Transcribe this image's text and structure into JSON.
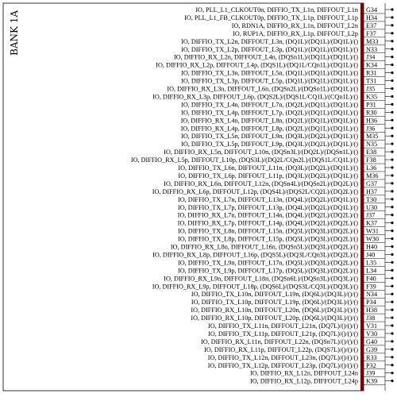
{
  "bank": {
    "title": "BANK 1A",
    "colors": {
      "border": "#000000",
      "power_rail": "#7a0000",
      "pin_dot": "#000000"
    }
  },
  "pins": [
    {
      "signal": "IO, PLL_L1_CLKOUT0n, DIFFIO_TX_L1n, DIFFOUT_L1n",
      "pin": "G34"
    },
    {
      "signal": "IO, PLL_L1_FB_CLKOUT0p, DIFFIO_TX_L1p, DIFFOUT_L1p",
      "pin": "H34"
    },
    {
      "signal": "IO, RDN1A, DIFFIO_RX_L1n, DIFFOUT_L2n",
      "pin": "E37"
    },
    {
      "signal": "IO, RUP1A, DIFFIO_RX_L1p, DIFFOUT_L2p",
      "pin": "F37"
    },
    {
      "signal": "IO, DIFFIO_TX_L2n, DIFFOUT_L3n, (DQ1L)/(DQ1L)/(DQ1L)/()",
      "pin": "M33"
    },
    {
      "signal": "IO, DIFFIO_TX_L2p, DIFFOUT_L3p, (DQ1L)/(DQ1L)/(DQ1L)/()",
      "pin": "N33"
    },
    {
      "signal": "IO, DIFFIO_RX_L2n, DIFFOUT_L4n, (DQSn1L)/(DQ1L)/(DQ1L)/()",
      "pin": "J34"
    },
    {
      "signal": "IO, DIFFIO_RX_L2p, DIFFOUT_L4p, (DQS1L)/(DQ1L/CQn1L)/(DQ1L)/()",
      "pin": "K34"
    },
    {
      "signal": "IO, DIFFIO_TX_L3n, DIFFOUT_L5n, (DQ1L)/(DQ1L)/(DQ1L)/()",
      "pin": "R31"
    },
    {
      "signal": "IO, DIFFIO_TX_L3p, DIFFOUT_L5p, (DQ1L)/(DQ1L)/(DQ1L)/()",
      "pin": "T31"
    },
    {
      "signal": "IO, DIFFIO_RX_L3n, DIFFOUT_L6n, (DQSn2L)/(DQSn1L)/(DQ1L)/()",
      "pin": "J35"
    },
    {
      "signal": "IO, DIFFIO_RX_L3p, DIFFOUT_L6p, (DQS2L)/(DQS1L/CQ1L)/(CQn1L)/()",
      "pin": "K35"
    },
    {
      "signal": "IO, DIFFIO_TX_L4n, DIFFOUT_L7n, (DQ2L)/(DQ1L)/(DQ1L)/()",
      "pin": "P31"
    },
    {
      "signal": "IO, DIFFIO_TX_L4p, DIFFOUT_L7p, (DQ2L)/(DQ1L)/(DQ1L)/()",
      "pin": "R30"
    },
    {
      "signal": "IO, DIFFIO_RX_L4n, DIFFOUT_L8n, (DQ2L)/(DQ1L)/(DQ1L)/()",
      "pin": "H36"
    },
    {
      "signal": "IO, DIFFIO_RX_L4p, DIFFOUT_L8p, (DQ2L)/(DQ1L)/(DQ1L)/()",
      "pin": "J36"
    },
    {
      "signal": "IO, DIFFIO_TX_L5n, DIFFOUT_L9n, (DQ3L)/(DQ2L)/(DQ1L)/()",
      "pin": "M35"
    },
    {
      "signal": "IO, DIFFIO_TX_L5p, DIFFOUT_L9p, (DQ3L)/(DQ2L)/(DQ1L)/()",
      "pin": "N35"
    },
    {
      "signal": "IO, DIFFIO_RX_L5n, DIFFOUT_L10n, (DQSn3L)/(DQ2L)/(DQSn1L)/()",
      "pin": "E38"
    },
    {
      "signal": "IO, DIFFIO_RX_L5p, DIFFOUT_L10p, (DQS3L)/(DQ2L/CQn2L)/(DQS1L/CQ1L)/()",
      "pin": "F38"
    },
    {
      "signal": "IO, DIFFIO_TX_L6n, DIFFOUT_L11n, (DQ3L)/(DQ2L)/(DQ1L)/()",
      "pin": "L36"
    },
    {
      "signal": "IO, DIFFIO_TX_L6p, DIFFOUT_L11p, (DQ3L)/(DQ2L)/(DQ1L)/()",
      "pin": "M36"
    },
    {
      "signal": "IO, DIFFIO_RX_L6n, DIFFOUT_L12n, (DQSn4L)/(DQSn2L)/(DQ2L)/()",
      "pin": "G37"
    },
    {
      "signal": "IO, DIFFIO_RX_L6p, DIFFOUT_L12p, (DQS4L)/(DQS2L/CQ2L)/(DQ2L)/()",
      "pin": "H37"
    },
    {
      "signal": "IO, DIFFIO_TX_L7n, DIFFOUT_L13n, (DQ4L)/(DQ2L)/(DQ1L)/()",
      "pin": "T30"
    },
    {
      "signal": "IO, DIFFIO_TX_L7p, DIFFOUT_L13p, (DQ4L)/(DQ2L)/(DQ1L)/()",
      "pin": "U30"
    },
    {
      "signal": "IO, DIFFIO_RX_L7n, DIFFOUT_L14n, (DQ4L)/(DQ2L)/(DQ2L)/()",
      "pin": "J37"
    },
    {
      "signal": "IO, DIFFIO_RX_L7p, DIFFOUT_L14p, (DQ4L)/(DQ2L)/(DQ2L)/()",
      "pin": "K37"
    },
    {
      "signal": "IO, DIFFIO_TX_L8n, DIFFOUT_L15n, (DQ5L)/(DQ3L)/(DQ2L)/()",
      "pin": "W31"
    },
    {
      "signal": "IO, DIFFIO_TX_L8p, DIFFOUT_L15p, (DQ5L)/(DQ3L)/(DQ2L)/()",
      "pin": "W30"
    },
    {
      "signal": "IO, DIFFIO_RX_L8n, DIFFOUT_L16n, (DQSn5L)/(DQ3L)/(DQ2L)/()",
      "pin": "H40"
    },
    {
      "signal": "IO, DIFFIO_RX_L8p, DIFFOUT_L16p, (DQS5L)/(DQ3L/CQn3L)/(DQ2L)/()",
      "pin": "J40"
    },
    {
      "signal": "IO, DIFFIO_TX_L9n, DIFFOUT_L17n, (DQ5L)/(DQ3L)/(DQ2L)/()",
      "pin": "L35"
    },
    {
      "signal": "IO, DIFFIO_TX_L9p, DIFFOUT_L17p, (DQ5L)/(DQ3L)/(DQ2L)/()",
      "pin": "L34"
    },
    {
      "signal": "IO, DIFFIO_RX_L9n, DIFFOUT_L18n, (DQSn6L)/(DQSn3L)/(DQ3L)/()",
      "pin": "F40"
    },
    {
      "signal": "IO, DIFFIO_RX_L9p, DIFFOUT_L18p, (DQS6L)/(DQS3L/CQ3L)/(DQ3L)/()",
      "pin": "F39"
    },
    {
      "signal": "IO, DIFFIO_TX_L10n, DIFFOUT_L19n, (DQ6L)/(DQ3L)/()/()",
      "pin": "N34"
    },
    {
      "signal": "IO, DIFFIO_TX_L10p, DIFFOUT_L19p, (DQ6L)/(DQ3L)/()/()",
      "pin": "P34"
    },
    {
      "signal": "IO, DIFFIO_RX_L10n, DIFFOUT_L20n, (DQ6L)/(DQ3L)/()/()",
      "pin": "H38"
    },
    {
      "signal": "IO, DIFFIO_RX_L10p, DIFFOUT_L20p, (DQ6L)/(DQ3L)/()/()",
      "pin": "J38"
    },
    {
      "signal": "IO, DIFFIO_TX_L11n, DIFFOUT_L21n, (DQ7L)/()/()/()",
      "pin": "V31"
    },
    {
      "signal": "IO, DIFFIO_TX_L11p, DIFFOUT_L21p, (DQ7L)/()/()/()",
      "pin": "V30"
    },
    {
      "signal": "IO, DIFFIO_RX_L11n, DIFFOUT_L22n, (DQSn7L)/()/()/()",
      "pin": "G40"
    },
    {
      "signal": "IO, DIFFIO_RX_L11p, DIFFOUT_L22p, (DQS7L)/()/()/()",
      "pin": "G39"
    },
    {
      "signal": "IO, DIFFIO_TX_L12n, DIFFOUT_L23n, (DQ7L)/()/()/()",
      "pin": "R33"
    },
    {
      "signal": "IO, DIFFIO_TX_L12p, DIFFOUT_L23p, (DQ7L)/()/()/()",
      "pin": "P32"
    },
    {
      "signal": "IO, DIFFIO_RX_L12n, DIFFOUT_L24n",
      "pin": "J39"
    },
    {
      "signal": "IO, DIFFIO_RX_L12p, DIFFOUT_L24p",
      "pin": "K39"
    }
  ]
}
